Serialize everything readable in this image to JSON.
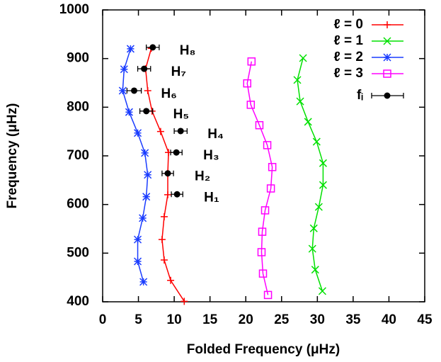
{
  "chart_data": {
    "type": "line",
    "xlabel": "Folded Frequency (μHz)",
    "ylabel": "Frequency (μHz)",
    "xlim": [
      0,
      45
    ],
    "xticks": [
      0,
      5,
      10,
      15,
      20,
      25,
      30,
      35,
      40,
      45
    ],
    "ylim": [
      400,
      1000
    ],
    "yticks": [
      400,
      500,
      600,
      700,
      800,
      900,
      1000
    ],
    "legend": "upper right",
    "series": [
      {
        "name": "ℓ = 0",
        "color": "#ff0000",
        "marker": "plus",
        "x": [
          11.4,
          9.5,
          8.6,
          8.3,
          8.6,
          9.1,
          9.1,
          9.2,
          8.1,
          6.9,
          6.3,
          6.0,
          6.8
        ],
        "values": [
          401,
          444,
          486,
          528,
          575,
          620,
          664,
          707,
          750,
          792,
          834,
          879,
          921
        ]
      },
      {
        "name": "ℓ = 1",
        "color": "#00e000",
        "marker": "cross",
        "x": [
          30.7,
          29.7,
          29.3,
          29.5,
          30.2,
          30.8,
          30.8,
          29.9,
          28.7,
          27.6,
          27.2,
          28.0
        ],
        "values": [
          422,
          466,
          509,
          551,
          595,
          640,
          685,
          729,
          770,
          812,
          856,
          901
        ]
      },
      {
        "name": "ℓ = 2",
        "color": "#1a3cff",
        "marker": "star",
        "x": [
          5.7,
          4.9,
          4.9,
          5.6,
          6.1,
          6.3,
          5.9,
          4.9,
          3.7,
          2.8,
          3.0,
          3.9
        ],
        "values": [
          441,
          483,
          528,
          572,
          616,
          661,
          706,
          747,
          790,
          834,
          878,
          920
        ]
      },
      {
        "name": "ℓ = 3",
        "color": "#ff00ff",
        "marker": "square",
        "x": [
          23.1,
          22.4,
          22.2,
          22.3,
          22.7,
          23.5,
          23.7,
          23.0,
          21.9,
          20.7,
          20.2,
          20.8
        ],
        "values": [
          414,
          458,
          502,
          544,
          588,
          633,
          677,
          722,
          763,
          805,
          849,
          894
        ]
      },
      {
        "name": "fᵢ",
        "color": "#000000",
        "marker": "circle",
        "x": [
          10.4,
          9.1,
          10.3,
          10.9,
          6.1,
          4.4,
          5.8,
          7.0
        ],
        "xerr": [
          0.8,
          0.8,
          0.8,
          0.9,
          0.9,
          1.0,
          0.9,
          0.9
        ],
        "values": [
          621,
          664,
          707,
          751,
          792,
          834,
          879,
          923
        ]
      }
    ],
    "annotations": [
      "H₁",
      "H₂",
      "H₃",
      "H₄",
      "H₅",
      "H₆",
      "H₇",
      "H₈"
    ]
  }
}
